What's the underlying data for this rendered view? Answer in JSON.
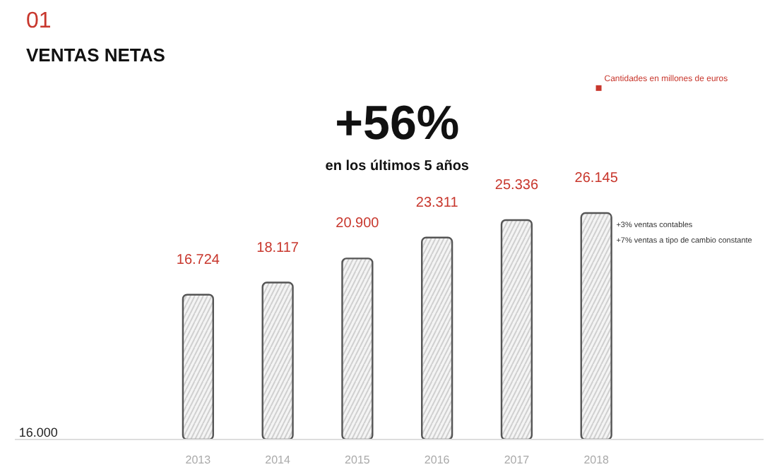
{
  "chart_data": {
    "type": "bar",
    "subtitle": "01",
    "title": "VENTAS NETAS",
    "categories": [
      "2013",
      "2014",
      "2015",
      "2016",
      "2017",
      "2018"
    ],
    "values": [
      16724,
      18117,
      20900,
      23311,
      25336,
      26145
    ],
    "value_labels": [
      "16.724",
      "18.117",
      "20.900",
      "23.311",
      "25.336",
      "26.145"
    ],
    "color": "#f4f4f4",
    "grid": false,
    "annotations": [
      "+56%",
      "en los últimos 5 años",
      "Cantidades en millones de euros",
      "+3% ventas contables",
      "+7% ventas a tipo de cambio constante",
      "16.000"
    ]
  }
}
